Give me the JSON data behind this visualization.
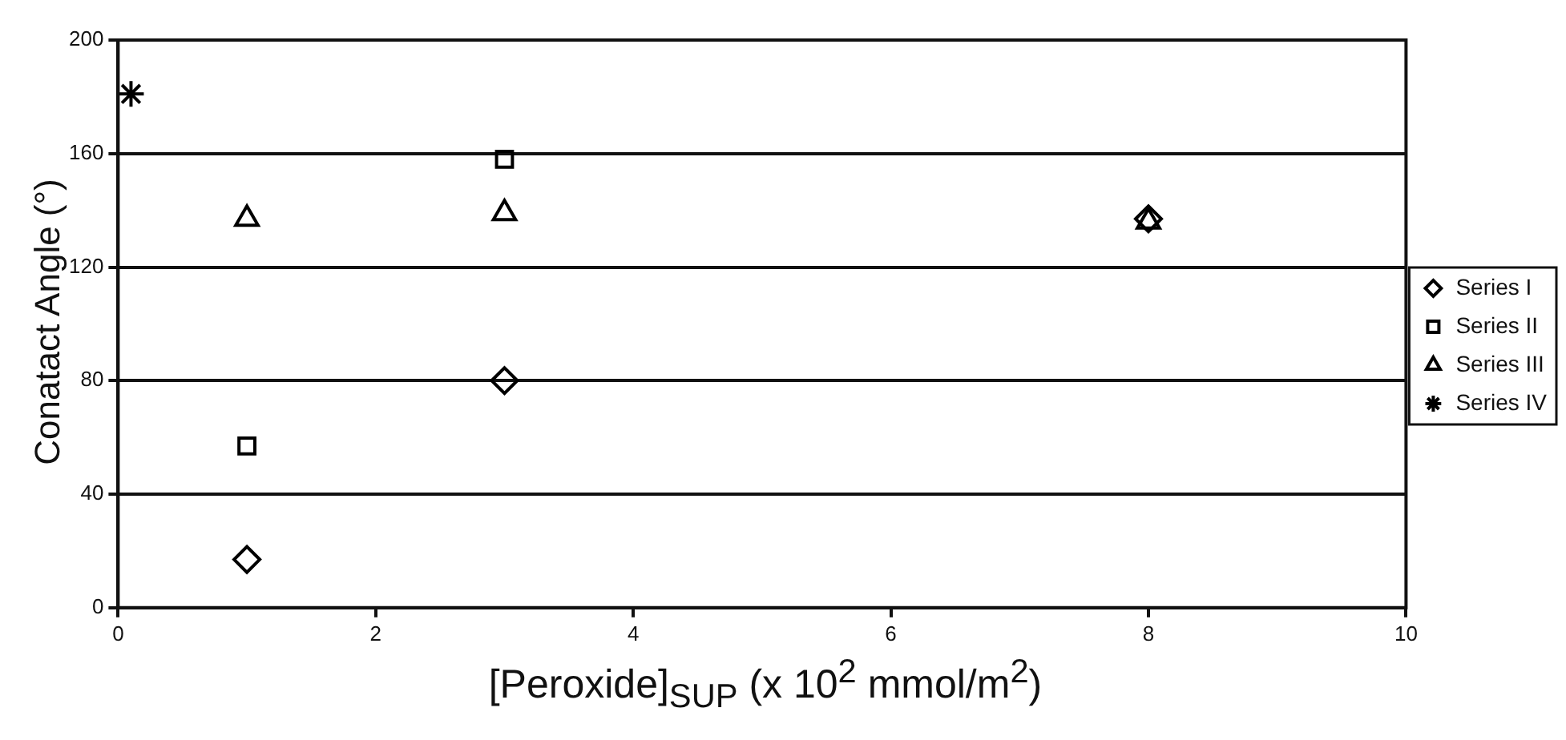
{
  "chart_data": {
    "type": "scatter",
    "xlabel": "[Peroxide]$_{SUP}$ (x 10$^{2}$ mmol/m$^{2}$)",
    "ylabel": "Conatact Angle (°)",
    "xlim": [
      0,
      10
    ],
    "xticks": [
      0,
      2,
      4,
      6,
      8,
      10
    ],
    "ylim": [
      0,
      200
    ],
    "yticks": [
      0,
      40,
      80,
      120,
      160,
      200
    ],
    "grid": "y",
    "legend": "right",
    "series": [
      {
        "name": "Series I",
        "color": "#000000",
        "marker": "diamond",
        "x": [
          1,
          3,
          8
        ],
        "values": [
          17,
          80,
          137
        ]
      },
      {
        "name": "Series II",
        "color": "#000000",
        "marker": "square",
        "x": [
          1,
          3
        ],
        "values": [
          57,
          158
        ]
      },
      {
        "name": "Series III",
        "color": "#000000",
        "marker": "triangle",
        "x": [
          1,
          3,
          8
        ],
        "values": [
          137,
          139,
          136
        ]
      },
      {
        "name": "Series IV",
        "color": "#000000",
        "marker": "cross",
        "x": [
          0.1
        ],
        "values": [
          181
        ]
      }
    ]
  }
}
